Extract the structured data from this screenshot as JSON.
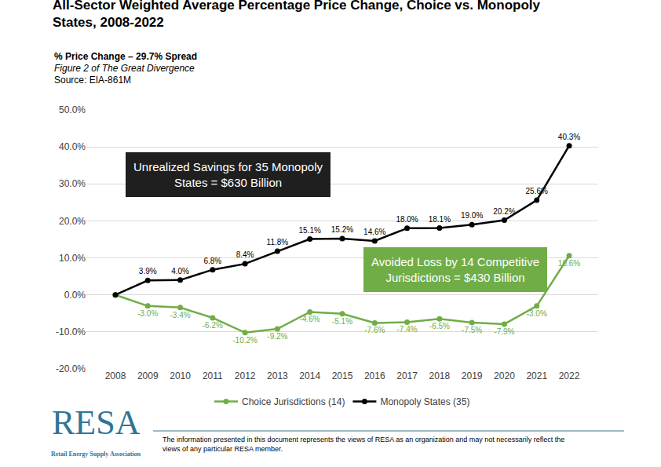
{
  "chart_data": {
    "type": "line",
    "title": "All-Sector Weighted Average Percentage Price Change, Choice vs. Monopoly States, 2008-2022",
    "subtitle": "% Price Change – 29.7% Spread",
    "figure_note": "Figure 2 of The Great Divergence",
    "source": "Source: EIA-861M",
    "annotations": [
      {
        "text": "Unrealized Savings for 35 Monopoly States = $630 Billion",
        "color": "#1f1f1f"
      },
      {
        "text": "Avoided Loss by 14 Competitive Jurisdictions = $430 Billion",
        "color": "#70ad47"
      }
    ],
    "categories": [
      "2008",
      "2009",
      "2010",
      "2011",
      "2012",
      "2013",
      "2014",
      "2015",
      "2016",
      "2017",
      "2018",
      "2019",
      "2020",
      "2021",
      "2022"
    ],
    "series": [
      {
        "name": "Choice Jurisdictions (14)",
        "color": "#70ad47",
        "marker": "circle",
        "line_style": "solid",
        "values": [
          0,
          -3.0,
          -3.4,
          -6.2,
          -10.2,
          -9.2,
          -4.6,
          -5.1,
          -7.6,
          -7.4,
          -6.5,
          -7.5,
          -7.9,
          -3.0,
          10.6
        ],
        "value_labels": [
          null,
          "-3.0%",
          "-3.4%",
          "-6.2%",
          "-10.2%",
          "-9.2%",
          "-4.6%",
          "-5.1%",
          "-7.6%",
          "-7.4%",
          "-6.5%",
          "-7.5%",
          "-7.9%",
          "-3.0%",
          "10.6%"
        ]
      },
      {
        "name": "Monopoly States (35)",
        "color": "#000000",
        "marker": "circle",
        "line_style": "solid",
        "values": [
          0,
          3.9,
          4.0,
          6.8,
          8.4,
          11.8,
          15.1,
          15.2,
          14.6,
          18.0,
          18.1,
          19.0,
          20.2,
          25.6,
          40.3
        ],
        "value_labels": [
          null,
          "3.9%",
          "4.0%",
          "6.8%",
          "8.4%",
          "11.8%",
          "15.1%",
          "15.2%",
          "14.6%",
          "18.0%",
          "18.1%",
          "19.0%",
          "20.2%",
          "25.6%",
          "40.3%"
        ]
      }
    ],
    "ylim": [
      -20,
      50
    ],
    "yticks": [
      {
        "value": -20,
        "label": "-20.0%"
      },
      {
        "value": -10,
        "label": "-10.0%"
      },
      {
        "value": 0,
        "label": "0.0%"
      },
      {
        "value": 10,
        "label": "10.0%"
      },
      {
        "value": 20,
        "label": "20.0%"
      },
      {
        "value": 30,
        "label": "30.0%"
      },
      {
        "value": 40,
        "label": "40.0%"
      },
      {
        "value": 50,
        "label": "50.0%"
      }
    ],
    "grid": true,
    "legend": "bottom",
    "data_labels": true,
    "logo": {
      "text": "RESA",
      "caption": "Retail Energy Supply Association"
    },
    "disclaimer": "The information presented in this document represents the views of RESA as an organization and may not necessarily reflect the views of any particular RESA member."
  }
}
